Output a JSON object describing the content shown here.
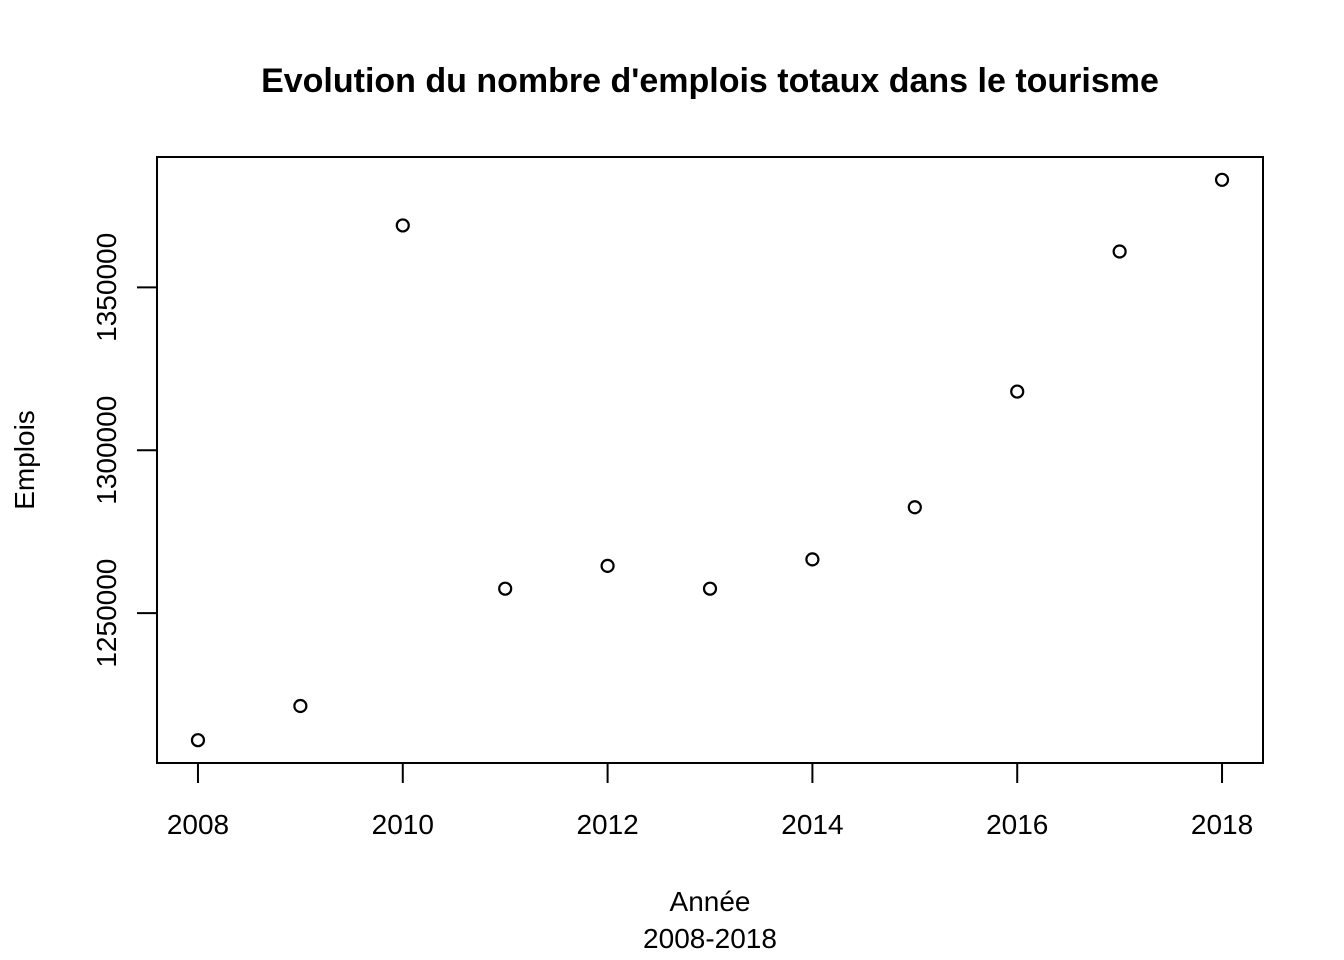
{
  "chart_data": {
    "type": "scatter",
    "title": "Evolution du nombre d'emplois totaux dans le tourisme",
    "xlabel": "Année",
    "xsublabel": "2008-2018",
    "ylabel": "Emplois",
    "x": [
      2008,
      2009,
      2010,
      2011,
      2012,
      2013,
      2014,
      2015,
      2016,
      2017,
      2018
    ],
    "y": [
      1211000,
      1221500,
      1369000,
      1257500,
      1264500,
      1257500,
      1266500,
      1282500,
      1318000,
      1361000,
      1383000
    ],
    "xlim": [
      2007.6,
      2018.4
    ],
    "ylim": [
      1204000,
      1390000
    ],
    "xticks": [
      2008,
      2010,
      2012,
      2014,
      2016,
      2018
    ],
    "xtick_labels": [
      "2008",
      "2010",
      "2012",
      "2014",
      "2016",
      "2018"
    ],
    "yticks": [
      1250000,
      1300000,
      1350000
    ],
    "ytick_labels": [
      "1250000",
      "1300000",
      "1350000"
    ],
    "grid": false,
    "marker": "open-circle",
    "colors": {
      "points": "#000000",
      "axes": "#000000",
      "background": "#ffffff"
    }
  }
}
